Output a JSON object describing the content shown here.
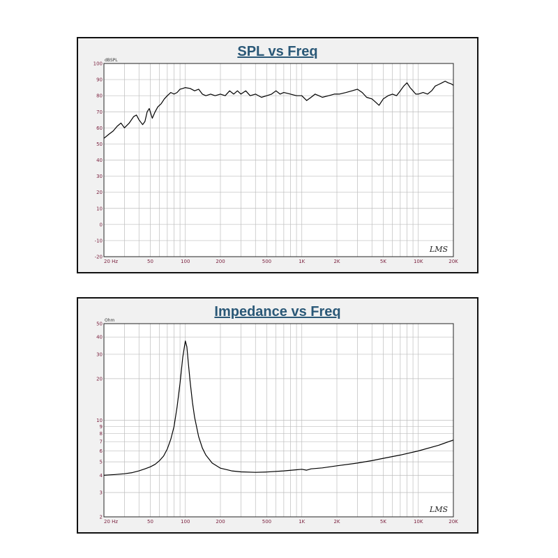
{
  "colors": {
    "panel_bg": "#f1f1f1",
    "plot_bg": "#ffffff",
    "grid": "#bdbdbd",
    "curve": "#000000",
    "title": "#2a5877",
    "tick_label": "#7a1f3d"
  },
  "chart_data": [
    {
      "type": "line",
      "title": "SPL vs Freq",
      "ylabel": "dBSPL",
      "xscale": "log",
      "xlim": [
        20,
        20000
      ],
      "ylim": [
        -20,
        100
      ],
      "grid": true,
      "watermark": "LMS",
      "x_tick_labels": [
        {
          "v": 20,
          "t": "20  Hz"
        },
        {
          "v": 50,
          "t": "50"
        },
        {
          "v": 100,
          "t": "100"
        },
        {
          "v": 200,
          "t": "200"
        },
        {
          "v": 500,
          "t": "500"
        },
        {
          "v": 1000,
          "t": "1K"
        },
        {
          "v": 2000,
          "t": "2K"
        },
        {
          "v": 5000,
          "t": "5K"
        },
        {
          "v": 10000,
          "t": "10K"
        },
        {
          "v": 20000,
          "t": "20K"
        }
      ],
      "y_ticks": [
        100,
        90,
        80,
        70,
        60,
        50,
        40,
        30,
        20,
        10,
        0,
        -10,
        -20
      ],
      "series": [
        {
          "points": [
            [
              20,
              53.5
            ],
            [
              22,
              56
            ],
            [
              24,
              58
            ],
            [
              26,
              61
            ],
            [
              28,
              63
            ],
            [
              30,
              60
            ],
            [
              33,
              63
            ],
            [
              36,
              67
            ],
            [
              38,
              68
            ],
            [
              40,
              65
            ],
            [
              43,
              62
            ],
            [
              45,
              64
            ],
            [
              47,
              70
            ],
            [
              49,
              72
            ],
            [
              52,
              66
            ],
            [
              55,
              70
            ],
            [
              58,
              73
            ],
            [
              62,
              75
            ],
            [
              66,
              78
            ],
            [
              70,
              80
            ],
            [
              75,
              82
            ],
            [
              80,
              81
            ],
            [
              85,
              82
            ],
            [
              90,
              84
            ],
            [
              95,
              84.5
            ],
            [
              100,
              85
            ],
            [
              110,
              84.5
            ],
            [
              120,
              83
            ],
            [
              130,
              84
            ],
            [
              140,
              81
            ],
            [
              150,
              80
            ],
            [
              165,
              81
            ],
            [
              180,
              80
            ],
            [
              200,
              81
            ],
            [
              220,
              80
            ],
            [
              240,
              83
            ],
            [
              260,
              81
            ],
            [
              280,
              83
            ],
            [
              300,
              81
            ],
            [
              330,
              83
            ],
            [
              360,
              80
            ],
            [
              400,
              81
            ],
            [
              450,
              79
            ],
            [
              500,
              80
            ],
            [
              550,
              81
            ],
            [
              600,
              83
            ],
            [
              650,
              81
            ],
            [
              700,
              82
            ],
            [
              800,
              81
            ],
            [
              900,
              80
            ],
            [
              1000,
              80
            ],
            [
              1100,
              77
            ],
            [
              1200,
              79
            ],
            [
              1300,
              81
            ],
            [
              1400,
              80
            ],
            [
              1500,
              79
            ],
            [
              1700,
              80
            ],
            [
              1900,
              81
            ],
            [
              2100,
              81
            ],
            [
              2400,
              82
            ],
            [
              2700,
              83
            ],
            [
              3000,
              84
            ],
            [
              3300,
              82
            ],
            [
              3600,
              79
            ],
            [
              4000,
              78
            ],
            [
              4300,
              76
            ],
            [
              4600,
              74
            ],
            [
              5000,
              78
            ],
            [
              5500,
              80
            ],
            [
              6000,
              81
            ],
            [
              6500,
              80
            ],
            [
              7000,
              83
            ],
            [
              7500,
              86
            ],
            [
              8000,
              88
            ],
            [
              8500,
              85
            ],
            [
              9000,
              83
            ],
            [
              9500,
              81
            ],
            [
              10000,
              81
            ],
            [
              11000,
              82
            ],
            [
              12000,
              81
            ],
            [
              13000,
              83
            ],
            [
              14000,
              86
            ],
            [
              15000,
              87
            ],
            [
              16000,
              88
            ],
            [
              17000,
              89
            ],
            [
              18000,
              88
            ],
            [
              19000,
              87.5
            ],
            [
              20000,
              86.5
            ]
          ]
        }
      ]
    },
    {
      "type": "line",
      "title": "Impedance vs Freq",
      "ylabel": "Ohm",
      "xscale": "log",
      "yscale": "log",
      "xlim": [
        20,
        20000
      ],
      "ylim": [
        2,
        50
      ],
      "grid": true,
      "watermark": "LMS",
      "x_tick_labels": [
        {
          "v": 20,
          "t": "20  Hz"
        },
        {
          "v": 50,
          "t": "50"
        },
        {
          "v": 100,
          "t": "100"
        },
        {
          "v": 200,
          "t": "200"
        },
        {
          "v": 500,
          "t": "500"
        },
        {
          "v": 1000,
          "t": "1K"
        },
        {
          "v": 2000,
          "t": "2K"
        },
        {
          "v": 5000,
          "t": "5K"
        },
        {
          "v": 10000,
          "t": "10K"
        },
        {
          "v": 20000,
          "t": "20K"
        }
      ],
      "y_ticks": [
        50,
        40,
        30,
        20,
        10,
        9,
        8,
        7,
        6,
        5,
        4,
        3,
        2
      ],
      "series": [
        {
          "points": [
            [
              20,
              4.0
            ],
            [
              25,
              4.05
            ],
            [
              30,
              4.1
            ],
            [
              35,
              4.18
            ],
            [
              40,
              4.3
            ],
            [
              45,
              4.45
            ],
            [
              50,
              4.6
            ],
            [
              55,
              4.8
            ],
            [
              60,
              5.1
            ],
            [
              65,
              5.5
            ],
            [
              70,
              6.2
            ],
            [
              75,
              7.3
            ],
            [
              80,
              9.0
            ],
            [
              85,
              12.5
            ],
            [
              90,
              18.5
            ],
            [
              95,
              28.5
            ],
            [
              100,
              37.5
            ],
            [
              103,
              34
            ],
            [
              106,
              26
            ],
            [
              110,
              19
            ],
            [
              115,
              13.5
            ],
            [
              120,
              10.5
            ],
            [
              130,
              7.6
            ],
            [
              140,
              6.3
            ],
            [
              150,
              5.6
            ],
            [
              170,
              4.9
            ],
            [
              200,
              4.5
            ],
            [
              250,
              4.3
            ],
            [
              300,
              4.23
            ],
            [
              400,
              4.2
            ],
            [
              500,
              4.22
            ],
            [
              700,
              4.3
            ],
            [
              900,
              4.38
            ],
            [
              1000,
              4.42
            ],
            [
              1100,
              4.35
            ],
            [
              1200,
              4.45
            ],
            [
              1500,
              4.52
            ],
            [
              2000,
              4.68
            ],
            [
              3000,
              4.9
            ],
            [
              4000,
              5.1
            ],
            [
              5000,
              5.3
            ],
            [
              7000,
              5.6
            ],
            [
              10000,
              6.0
            ],
            [
              15000,
              6.6
            ],
            [
              20000,
              7.2
            ]
          ]
        }
      ]
    }
  ]
}
